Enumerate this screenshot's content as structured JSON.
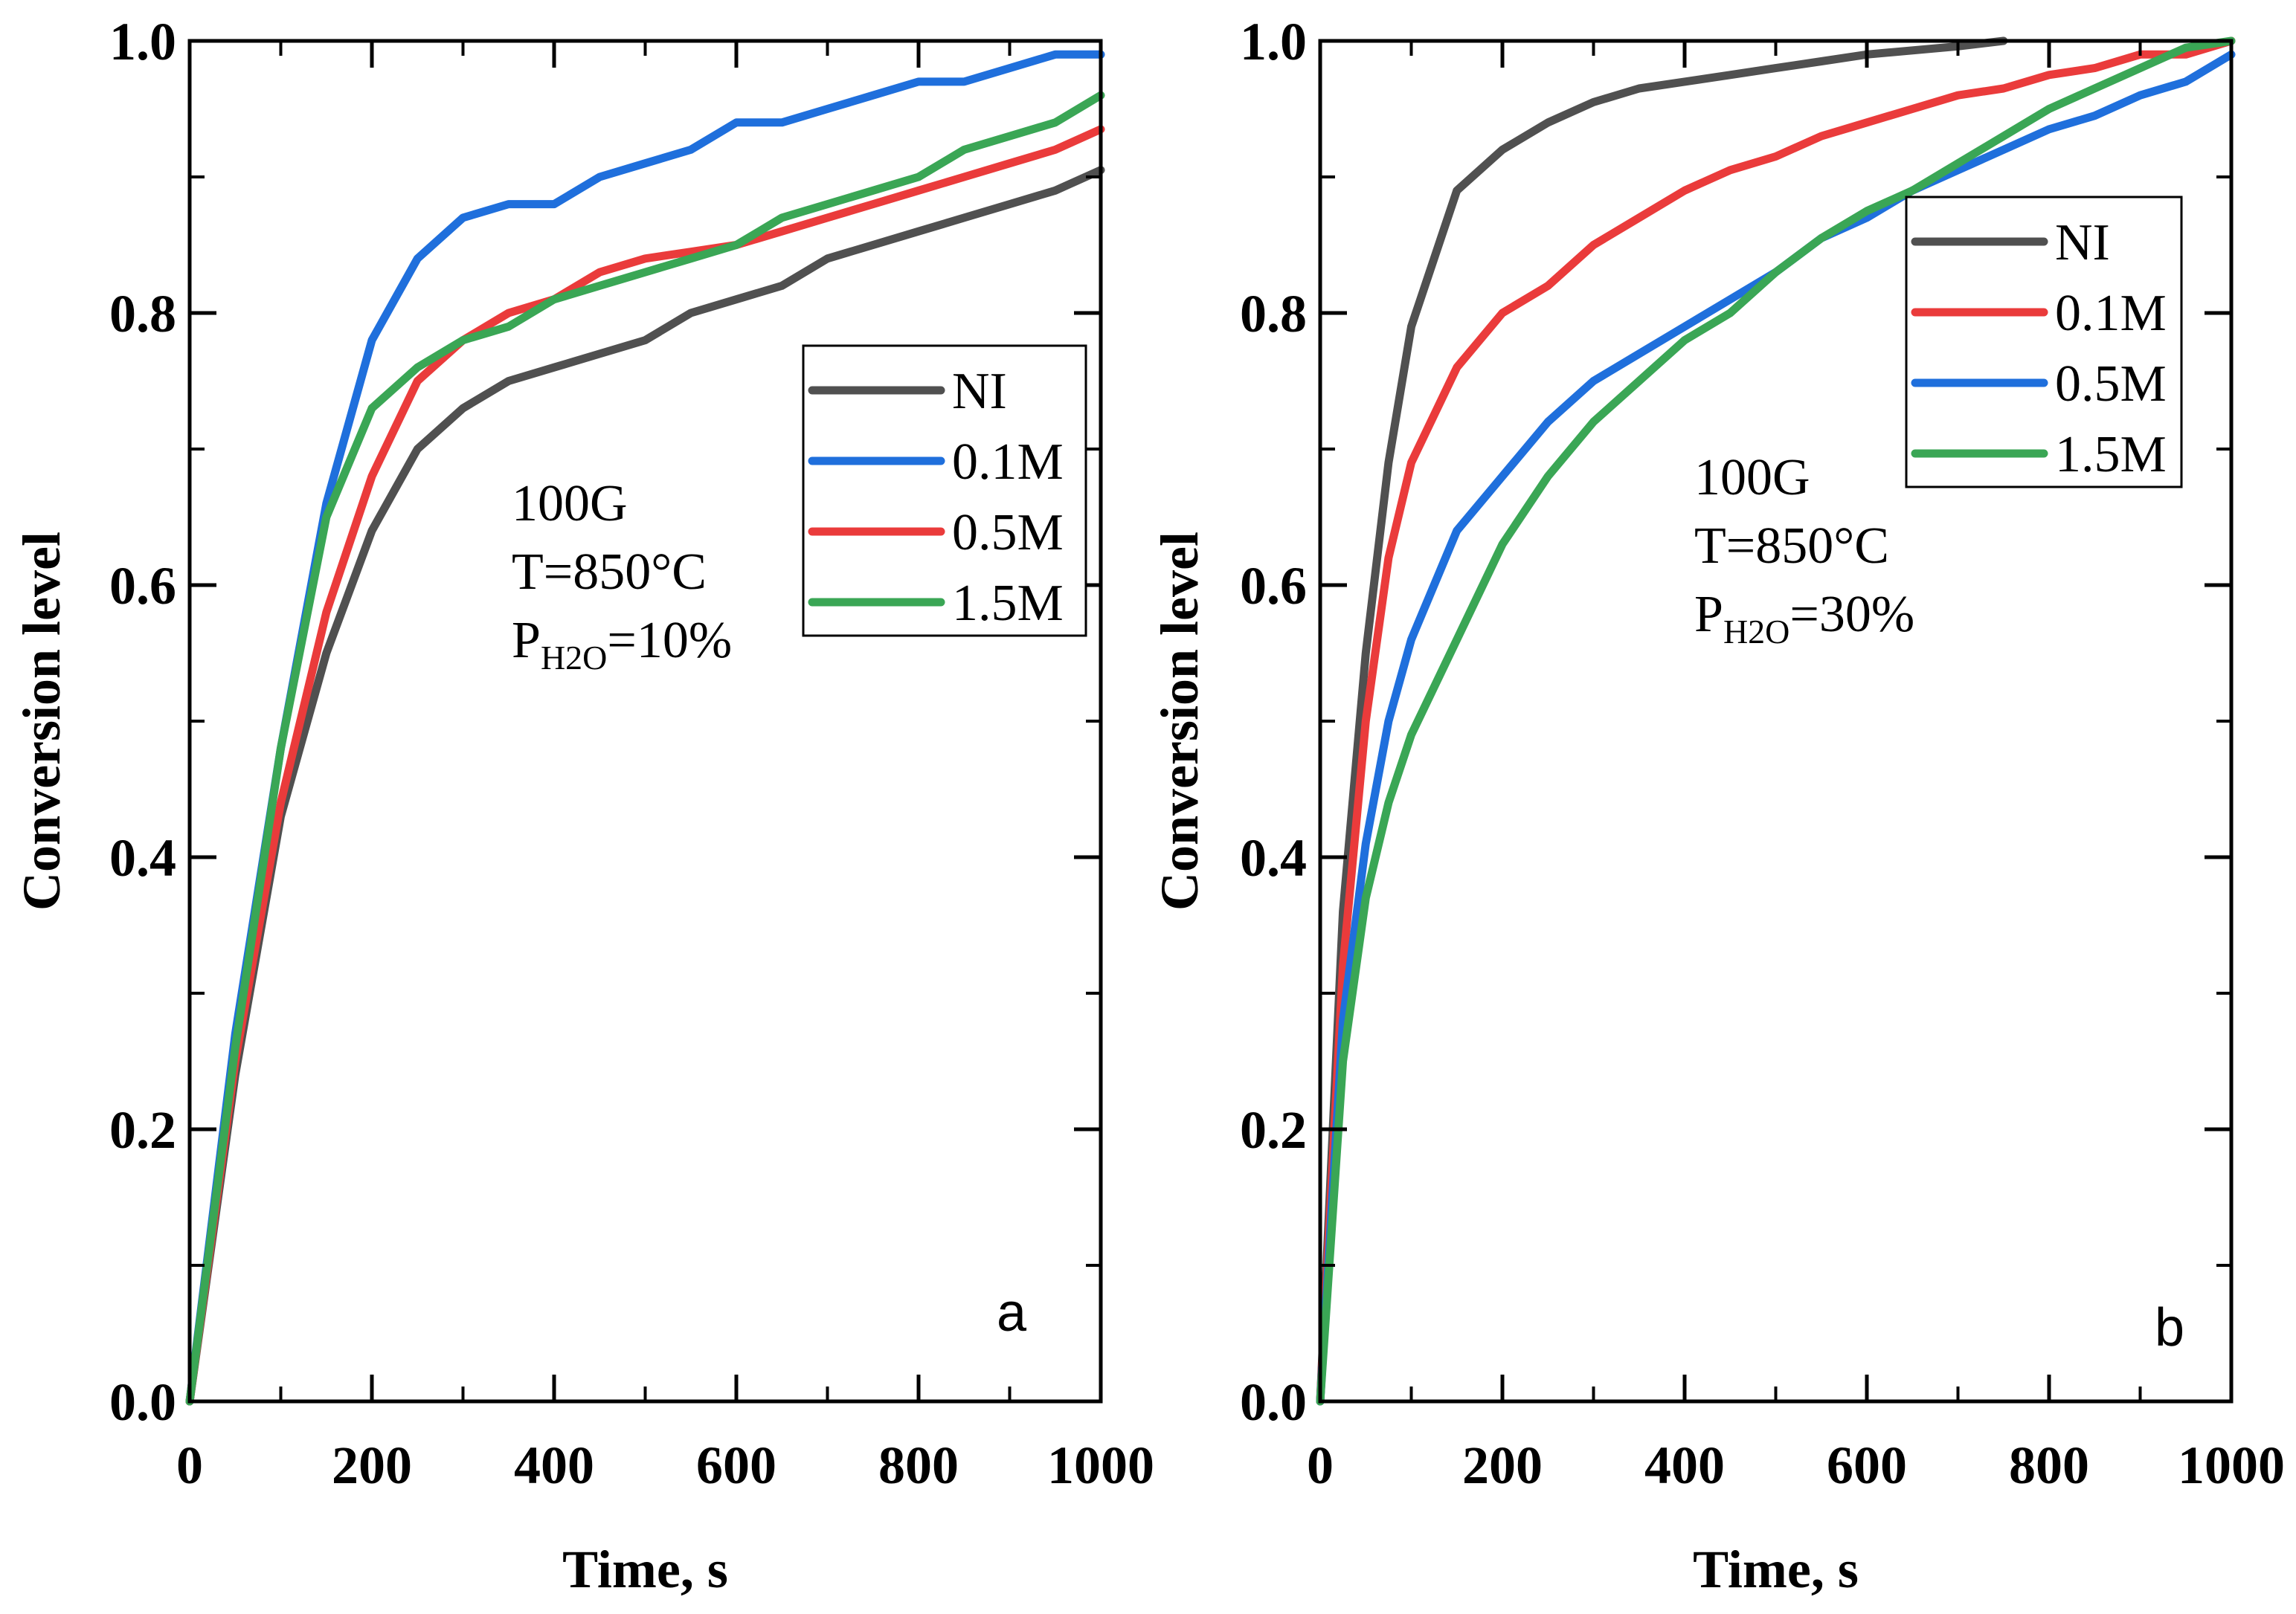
{
  "chart_data": [
    {
      "type": "line",
      "panel": "a",
      "panel_label": "a",
      "xlabel": "Time, s",
      "ylabel": "Conversion level",
      "xlim": [
        0,
        1000
      ],
      "ylim": [
        0.0,
        1.0
      ],
      "x_ticks": [
        "0",
        "200",
        "400",
        "600",
        "800",
        "1000"
      ],
      "y_ticks": [
        "0.0",
        "0.2",
        "0.4",
        "0.6",
        "0.8",
        "1.0"
      ],
      "legend_position": "right-middle",
      "annotation": {
        "line1": "100G",
        "line2": "T=850°C",
        "p": "P",
        "sub": "H2O",
        "value": "=10%"
      },
      "x": [
        0,
        50,
        100,
        150,
        200,
        250,
        300,
        350,
        400,
        450,
        500,
        550,
        600,
        650,
        700,
        750,
        800,
        850,
        900,
        950,
        1000
      ],
      "series": [
        {
          "name": "NI",
          "color": "#505050",
          "values": [
            0.0,
            0.24,
            0.43,
            0.55,
            0.64,
            0.7,
            0.73,
            0.75,
            0.76,
            0.77,
            0.78,
            0.8,
            0.81,
            0.82,
            0.84,
            0.85,
            0.86,
            0.87,
            0.88,
            0.89,
            0.905
          ]
        },
        {
          "name": "0.1M",
          "color": "#1f6fdc",
          "values": [
            0.0,
            0.27,
            0.48,
            0.66,
            0.78,
            0.84,
            0.87,
            0.88,
            0.88,
            0.9,
            0.91,
            0.92,
            0.94,
            0.94,
            0.95,
            0.96,
            0.97,
            0.97,
            0.98,
            0.99,
            0.99
          ]
        },
        {
          "name": "0.5M",
          "color": "#ea3b3b",
          "values": [
            0.0,
            0.25,
            0.44,
            0.58,
            0.68,
            0.75,
            0.78,
            0.8,
            0.81,
            0.83,
            0.84,
            0.845,
            0.85,
            0.86,
            0.87,
            0.88,
            0.89,
            0.9,
            0.91,
            0.92,
            0.935
          ]
        },
        {
          "name": "1.5M",
          "color": "#3aa655",
          "values": [
            0.0,
            0.26,
            0.48,
            0.65,
            0.73,
            0.76,
            0.78,
            0.79,
            0.81,
            0.82,
            0.83,
            0.84,
            0.85,
            0.87,
            0.88,
            0.89,
            0.9,
            0.92,
            0.93,
            0.94,
            0.96
          ]
        }
      ]
    },
    {
      "type": "line",
      "panel": "b",
      "panel_label": "b",
      "xlabel": "Time, s",
      "ylabel": "Conversion level",
      "xlim": [
        0,
        1000
      ],
      "ylim": [
        0.0,
        1.0
      ],
      "x_ticks": [
        "0",
        "200",
        "400",
        "600",
        "800",
        "1000"
      ],
      "y_ticks": [
        "0.0",
        "0.2",
        "0.4",
        "0.6",
        "0.8",
        "1.0"
      ],
      "legend_position": "top-right",
      "annotation": {
        "line1": "100G",
        "line2": "T=850°C",
        "p": "P",
        "sub": "H2O",
        "value": "=30%"
      },
      "x": [
        0,
        25,
        50,
        75,
        100,
        150,
        200,
        250,
        300,
        350,
        400,
        450,
        500,
        550,
        600,
        650,
        700,
        750,
        800,
        850,
        900,
        950,
        1000
      ],
      "series": [
        {
          "name": "NI",
          "color": "#505050",
          "values": [
            0.0,
            0.36,
            0.55,
            0.69,
            0.79,
            0.89,
            0.92,
            0.94,
            0.955,
            0.965,
            0.97,
            0.975,
            0.98,
            0.985,
            0.99,
            0.993,
            0.996,
            1.0,
            null,
            null,
            null,
            null,
            null
          ]
        },
        {
          "name": "0.1M",
          "color": "#ea3b3b",
          "values": [
            0.0,
            0.32,
            0.5,
            0.62,
            0.69,
            0.76,
            0.8,
            0.82,
            0.85,
            0.87,
            0.89,
            0.905,
            0.915,
            0.93,
            0.94,
            0.95,
            0.96,
            0.965,
            0.975,
            0.98,
            0.99,
            0.99,
            1.0
          ]
        },
        {
          "name": "0.5M",
          "color": "#1f6fdc",
          "values": [
            0.0,
            0.28,
            0.41,
            0.5,
            0.56,
            0.64,
            0.68,
            0.72,
            0.75,
            0.77,
            0.79,
            0.81,
            0.83,
            0.855,
            0.87,
            0.89,
            0.905,
            0.92,
            0.935,
            0.945,
            0.96,
            0.97,
            0.99
          ]
        },
        {
          "name": "1.5M",
          "color": "#3aa655",
          "values": [
            0.0,
            0.25,
            0.37,
            0.44,
            0.49,
            0.56,
            0.63,
            0.68,
            0.72,
            0.75,
            0.78,
            0.8,
            0.83,
            0.855,
            0.875,
            0.89,
            0.91,
            0.93,
            0.95,
            0.965,
            0.98,
            0.995,
            1.0
          ]
        }
      ]
    }
  ]
}
